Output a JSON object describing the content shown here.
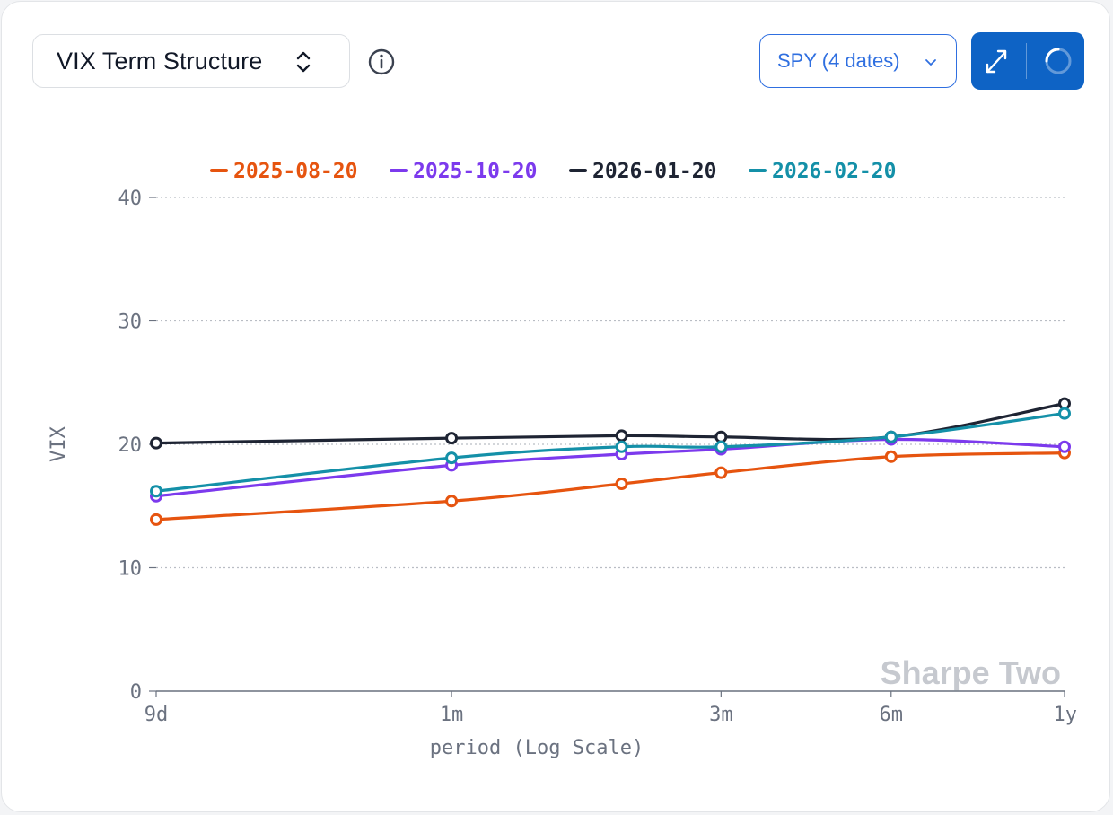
{
  "header": {
    "selector_label": "VIX Term Structure",
    "dropdown_label": "SPY (4 dates)"
  },
  "colors": {
    "accent": "#2f6fe0",
    "button_bg": "#0e63c5"
  },
  "icons": {
    "selector": "up-down-chevron-icon",
    "info": "info-icon",
    "dropdown": "chevron-down-icon",
    "expand": "expand-arrows-icon",
    "reload": "spinner-icon"
  },
  "watermark": "Sharpe Two",
  "chart_data": {
    "type": "line",
    "xlabel": "period (Log Scale)",
    "ylabel": "VIX",
    "x_scale": "log",
    "x_ticks": [
      "9d",
      "1m",
      "3m",
      "6m",
      "1y"
    ],
    "x_tick_days": [
      9,
      30,
      90,
      180,
      365
    ],
    "y_ticks": [
      0,
      10,
      20,
      30,
      40
    ],
    "ylim": [
      0,
      40
    ],
    "grid": "horizontal dotted",
    "legend_position": "top",
    "series": [
      {
        "name": "2025-08-20",
        "color": "#e6540f",
        "x_days": [
          9,
          30,
          60,
          90,
          180,
          365
        ],
        "values": [
          13.9,
          15.4,
          16.8,
          17.7,
          19.0,
          19.3
        ]
      },
      {
        "name": "2025-10-20",
        "color": "#7c3aed",
        "x_days": [
          9,
          30,
          60,
          90,
          180,
          365
        ],
        "values": [
          15.8,
          18.3,
          19.2,
          19.6,
          20.4,
          19.8
        ]
      },
      {
        "name": "2026-01-20",
        "color": "#1e2433",
        "x_days": [
          9,
          30,
          60,
          90,
          180,
          365
        ],
        "values": [
          20.1,
          20.5,
          20.7,
          20.6,
          20.6,
          23.3
        ]
      },
      {
        "name": "2026-02-20",
        "color": "#1490a8",
        "x_days": [
          9,
          30,
          60,
          90,
          180,
          365
        ],
        "values": [
          16.2,
          18.9,
          19.8,
          19.8,
          20.6,
          22.5
        ]
      }
    ]
  }
}
